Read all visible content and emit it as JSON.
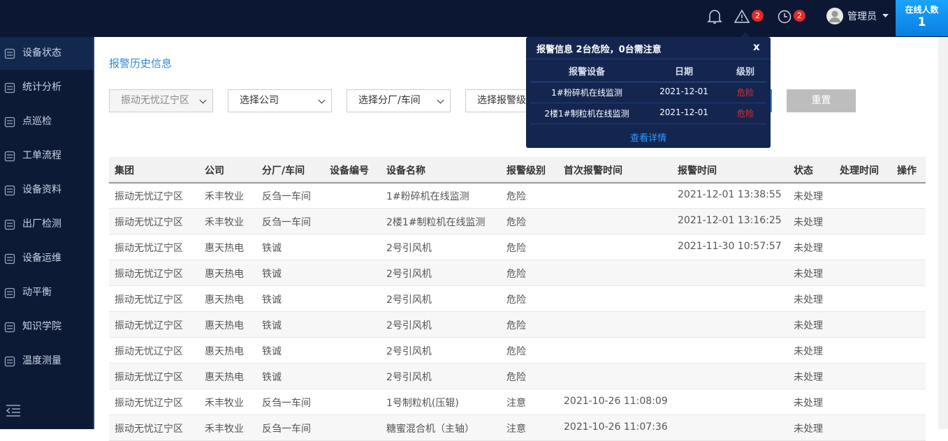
{
  "topbar": {
    "alarm_badge": "2",
    "history_badge": "2",
    "user": "管理员",
    "online_label": "在线人数",
    "online_count": "1"
  },
  "sidebar": {
    "menu": [
      "设备状态",
      "统计分析",
      "点巡检",
      "工单流程",
      "设备资料",
      "出厂检测",
      "设备运维",
      "动平衡",
      "知识学院",
      "温度测量"
    ]
  },
  "page_title": "报警历史信息",
  "filters": [
    "振动无忧辽宁区",
    "选择公司",
    "选择分厂/车间",
    "选择报警级别"
  ],
  "reset_button": "重置",
  "table": {
    "headers": [
      "集团",
      "公司",
      "分厂/车间",
      "设备编号",
      "设备名称",
      "报警级别",
      "首次报警时间",
      "报警时间",
      "状态",
      "处理时间",
      "操作"
    ],
    "rows": [
      [
        "振动无忧辽宁区",
        "禾丰牧业",
        "反刍一车间",
        null,
        "1#粉碎机在线监测",
        "危险",
        null,
        "2021-12-01 13:38:55",
        "未处理",
        null,
        null
      ],
      [
        "振动无忧辽宁区",
        "禾丰牧业",
        "反刍一车间",
        null,
        "2楼1#制粒机在线监测",
        "危险",
        null,
        "2021-12-01 13:16:25",
        "未处理",
        null,
        null
      ],
      [
        "振动无忧辽宁区",
        "惠天热电",
        "铁诚",
        null,
        "2号引风机",
        "危险",
        null,
        "2021-11-30 10:57:57",
        "未处理",
        null,
        null
      ],
      [
        "振动无忧辽宁区",
        "惠天热电",
        "铁诚",
        null,
        "2号引风机",
        "危险",
        null,
        null,
        "未处理",
        null,
        null
      ],
      [
        "振动无忧辽宁区",
        "惠天热电",
        "铁诚",
        null,
        "2号引风机",
        "危险",
        null,
        null,
        "未处理",
        null,
        null
      ],
      [
        "振动无忧辽宁区",
        "惠天热电",
        "铁诚",
        null,
        "2号引风机",
        "危险",
        null,
        null,
        "未处理",
        null,
        null
      ],
      [
        "振动无忧辽宁区",
        "惠天热电",
        "铁诚",
        null,
        "2号引风机",
        "危险",
        null,
        null,
        "未处理",
        null,
        null
      ],
      [
        "振动无忧辽宁区",
        "惠天热电",
        "铁诚",
        null,
        "2号引风机",
        "危险",
        null,
        null,
        "未处理",
        null,
        null
      ],
      [
        "振动无忧辽宁区",
        "禾丰牧业",
        "反刍一车间",
        null,
        "1号制粒机(压辊)",
        "注意",
        "2021-10-26 11:08:09",
        null,
        "未处理",
        null,
        null
      ],
      [
        "振动无忧辽宁区",
        "禾丰牧业",
        "反刍一车间",
        null,
        "糖蜜混合机（主轴）",
        "注意",
        "2021-10-26 11:07:36",
        null,
        "未处理",
        null,
        null
      ]
    ]
  },
  "popup": {
    "title": "报警信息 2台危险，0台需注意",
    "close": "x",
    "headers": [
      "报警设备",
      "日期",
      "级别"
    ],
    "rows": [
      [
        "1#粉碎机在线监测",
        "2021-12-01",
        "危险"
      ],
      [
        "2楼1#制粒机在线监测",
        "2021-12-01",
        "危险"
      ]
    ],
    "link": "查看详情"
  }
}
